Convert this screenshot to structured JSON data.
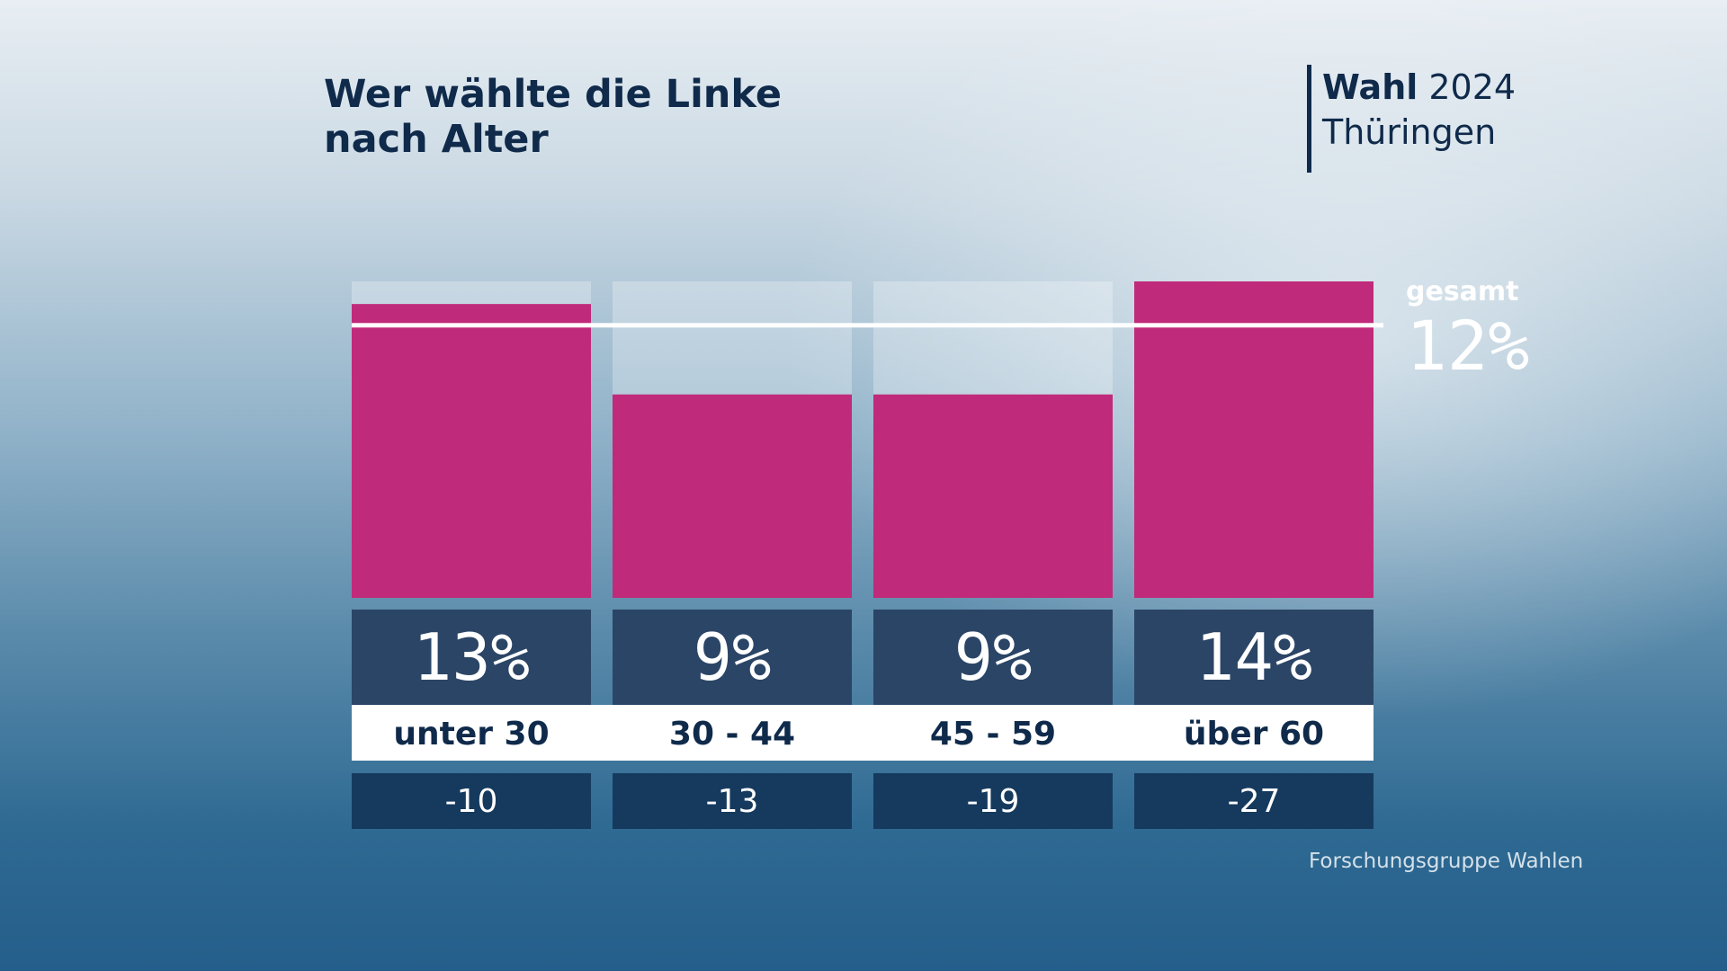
{
  "header": {
    "title_line1": "Wer wählte die Linke",
    "title_line2": "nach Alter",
    "brand_bold": "Wahl",
    "brand_year": "2024",
    "brand_region": "Thüringen"
  },
  "total": {
    "label": "gesamt",
    "value_text": "12%"
  },
  "source": "Forschungsgruppe Wahlen",
  "colors": {
    "bar": "#c02a7a",
    "track": "rgba(255,255,255,0.28)",
    "value_box": "#2b4566",
    "category_box": "#ffffff",
    "change_box": "#163a5e",
    "text_dark": "#0f2a4a"
  },
  "chart_data": {
    "type": "bar",
    "title": "Wer wählte die Linke nach Alter",
    "categories": [
      "unter 30",
      "30 - 44",
      "45 - 59",
      "über 60"
    ],
    "values": [
      13,
      9,
      9,
      14
    ],
    "value_labels": [
      "13%",
      "9%",
      "9%",
      "14%"
    ],
    "changes": [
      "-10",
      "-13",
      "-19",
      "-27"
    ],
    "reference_line": {
      "label": "gesamt",
      "value": 12
    },
    "ylim": [
      0,
      14
    ],
    "grid": false
  }
}
